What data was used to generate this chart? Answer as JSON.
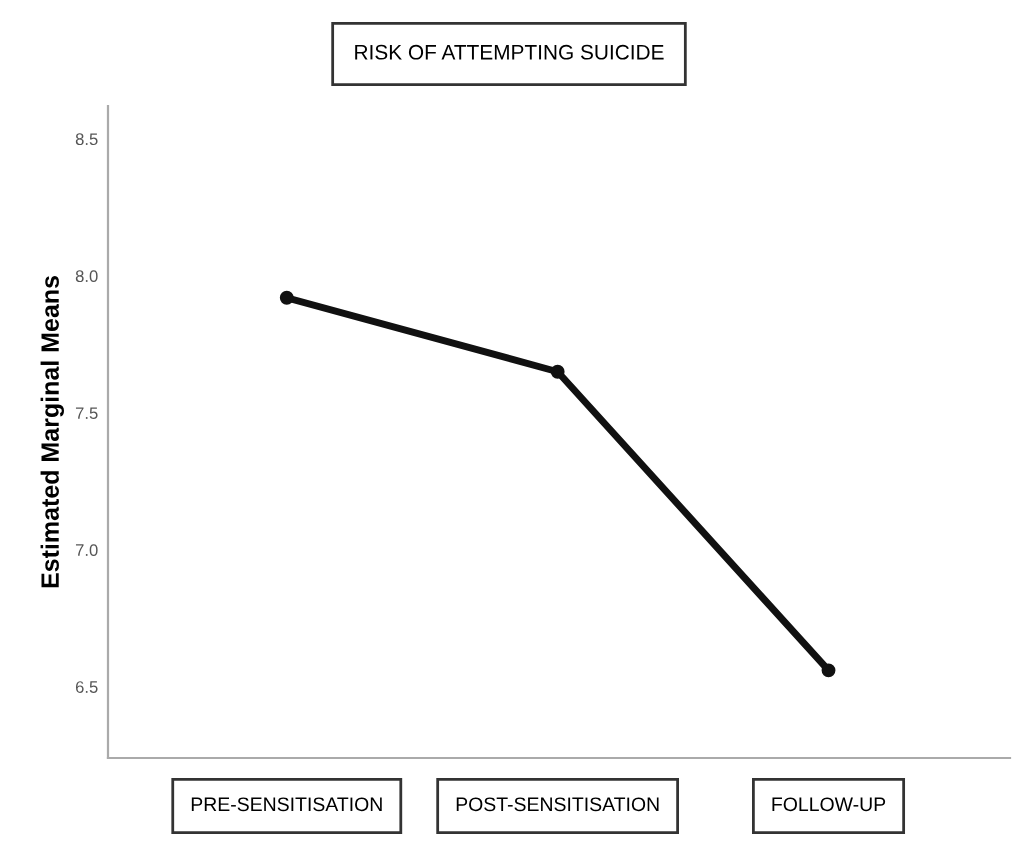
{
  "chart_data": {
    "type": "line",
    "title": "RISK OF ATTEMPTING SUICIDE",
    "ylabel": "Estimated Marginal Means",
    "categories": [
      "PRE-SENSITISATION",
      "POST-SENSITISATION",
      "FOLLOW-UP"
    ],
    "series": [
      {
        "color": "#111111",
        "values": [
          7.92,
          7.65,
          6.56
        ]
      }
    ],
    "ylim": [
      6.24,
      8.62
    ],
    "yticks": [
      6.5,
      {
        "value": 7,
        "label": "7.0"
      },
      7.5,
      {
        "value": 8,
        "label": "8.0"
      },
      8.5
    ],
    "marker": "circle",
    "line_style": "solid"
  }
}
